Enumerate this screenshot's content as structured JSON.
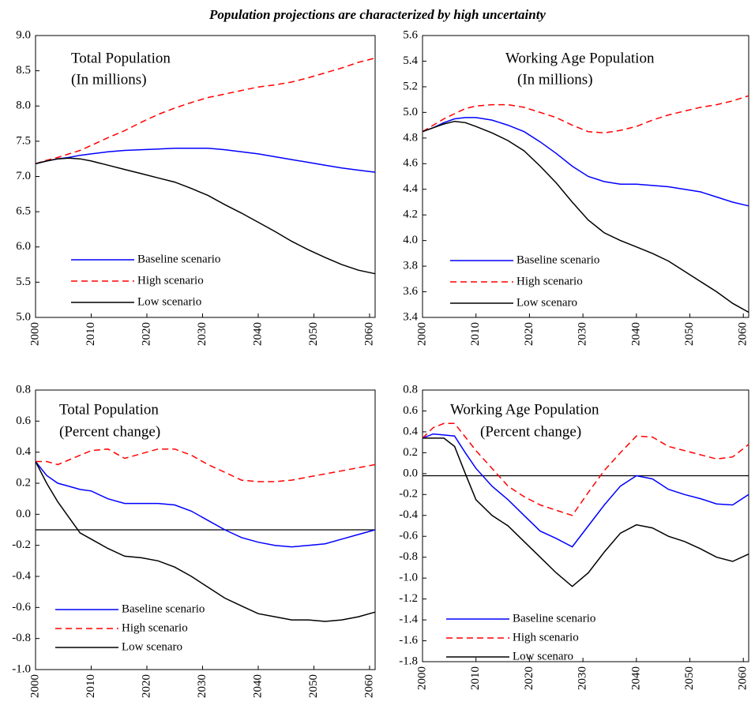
{
  "title": "Population projections are characterized by high uncertainty",
  "chart_data": [
    {
      "type": "line",
      "title": "Total Population",
      "subtitle": "(In millions)",
      "x": [
        2000,
        2002,
        2004,
        2006,
        2008,
        2010,
        2013,
        2016,
        2019,
        2022,
        2025,
        2028,
        2031,
        2034,
        2037,
        2040,
        2043,
        2046,
        2049,
        2052,
        2055,
        2058,
        2061
      ],
      "xlim": [
        2000,
        2061
      ],
      "xticks": [
        2000,
        2010,
        2020,
        2030,
        2040,
        2050,
        2060
      ],
      "ylim": [
        5,
        9
      ],
      "yticks": [
        {
          "value": 5,
          "label": "5.0"
        },
        5.5,
        {
          "value": 6,
          "label": "6.0"
        },
        6.5,
        {
          "value": 7,
          "label": "7.0"
        },
        7.5,
        {
          "value": 8,
          "label": "8.0"
        },
        8.5,
        {
          "value": 9,
          "label": "9.0"
        }
      ],
      "series": [
        {
          "name": "Baseline scenario",
          "color": "#0000ff",
          "dashed": false,
          "values": [
            7.18,
            7.22,
            7.25,
            7.27,
            7.3,
            7.32,
            7.35,
            7.37,
            7.38,
            7.39,
            7.4,
            7.4,
            7.4,
            7.38,
            7.35,
            7.32,
            7.28,
            7.24,
            7.2,
            7.16,
            7.12,
            7.09,
            7.06
          ]
        },
        {
          "name": "High scenario",
          "color": "#ff0000",
          "dashed": true,
          "values": [
            7.18,
            7.23,
            7.27,
            7.32,
            7.37,
            7.44,
            7.55,
            7.65,
            7.77,
            7.88,
            7.97,
            8.05,
            8.12,
            8.17,
            8.22,
            8.27,
            8.3,
            8.34,
            8.4,
            8.47,
            8.54,
            8.62,
            8.68
          ]
        },
        {
          "name": "Low scenario",
          "color": "#000000",
          "dashed": false,
          "values": [
            7.18,
            7.22,
            7.25,
            7.26,
            7.25,
            7.22,
            7.16,
            7.1,
            7.04,
            6.98,
            6.92,
            6.83,
            6.73,
            6.6,
            6.48,
            6.35,
            6.22,
            6.08,
            5.96,
            5.85,
            5.75,
            5.67,
            5.62
          ]
        }
      ]
    },
    {
      "type": "line",
      "title": "Working Age Population",
      "subtitle": "(In millions)",
      "x": [
        2000,
        2002,
        2004,
        2006,
        2008,
        2010,
        2013,
        2016,
        2019,
        2022,
        2025,
        2028,
        2031,
        2034,
        2037,
        2040,
        2043,
        2046,
        2049,
        2052,
        2055,
        2058,
        2061
      ],
      "xlim": [
        2000,
        2061
      ],
      "xticks": [
        2000,
        2010,
        2020,
        2030,
        2040,
        2050,
        2060
      ],
      "ylim": [
        3.4,
        5.6
      ],
      "yticks": [
        3.4,
        3.6,
        3.8,
        {
          "value": 4,
          "label": "4.0"
        },
        4.2,
        4.4,
        4.6,
        4.8,
        {
          "value": 5,
          "label": "5.0"
        },
        5.2,
        5.4,
        5.6
      ],
      "series": [
        {
          "name": "Baseline scenario",
          "color": "#0000ff",
          "dashed": false,
          "values": [
            4.85,
            4.88,
            4.92,
            4.95,
            4.96,
            4.96,
            4.94,
            4.9,
            4.85,
            4.77,
            4.68,
            4.58,
            4.5,
            4.46,
            4.44,
            4.44,
            4.43,
            4.42,
            4.4,
            4.38,
            4.34,
            4.3,
            4.27
          ]
        },
        {
          "name": "High scenario",
          "color": "#ff0000",
          "dashed": true,
          "values": [
            4.85,
            4.9,
            4.95,
            4.99,
            5.03,
            5.05,
            5.06,
            5.06,
            5.04,
            5.0,
            4.96,
            4.9,
            4.85,
            4.84,
            4.86,
            4.89,
            4.94,
            4.98,
            5.01,
            5.04,
            5.06,
            5.09,
            5.13
          ]
        },
        {
          "name": "Low scenaro",
          "color": "#000000",
          "dashed": false,
          "values": [
            4.85,
            4.88,
            4.91,
            4.93,
            4.92,
            4.89,
            4.84,
            4.78,
            4.7,
            4.58,
            4.45,
            4.3,
            4.16,
            4.06,
            4.0,
            3.95,
            3.9,
            3.84,
            3.76,
            3.68,
            3.6,
            3.51,
            3.44
          ]
        }
      ]
    },
    {
      "type": "line",
      "title": "Total Population",
      "subtitle": "(Percent change)",
      "x": [
        2000,
        2002,
        2004,
        2006,
        2008,
        2010,
        2013,
        2016,
        2019,
        2022,
        2025,
        2028,
        2031,
        2034,
        2037,
        2040,
        2043,
        2046,
        2049,
        2052,
        2055,
        2058,
        2061
      ],
      "xlim": [
        2000,
        2061
      ],
      "xticks": [
        2000,
        2010,
        2020,
        2030,
        2040,
        2050,
        2060
      ],
      "ylim": [
        -1,
        0.8
      ],
      "yticks": [
        {
          "value": -1,
          "label": "-1.0"
        },
        -0.8,
        -0.6,
        -0.4,
        -0.2,
        {
          "value": 0,
          "label": "0.0"
        },
        0.2,
        0.4,
        0.6,
        0.8
      ],
      "hline": -0.1,
      "series": [
        {
          "name": "Baseline scenario",
          "color": "#0000ff",
          "dashed": false,
          "values": [
            0.34,
            0.25,
            0.2,
            0.18,
            0.16,
            0.15,
            0.1,
            0.07,
            0.07,
            0.07,
            0.06,
            0.02,
            -0.04,
            -0.1,
            -0.15,
            -0.18,
            -0.2,
            -0.21,
            -0.2,
            -0.19,
            -0.16,
            -0.13,
            -0.1
          ]
        },
        {
          "name": "High scenario",
          "color": "#ff0000",
          "dashed": true,
          "values": [
            0.34,
            0.34,
            0.32,
            0.35,
            0.38,
            0.41,
            0.42,
            0.36,
            0.39,
            0.42,
            0.42,
            0.38,
            0.32,
            0.27,
            0.22,
            0.21,
            0.21,
            0.22,
            0.24,
            0.26,
            0.28,
            0.3,
            0.32
          ]
        },
        {
          "name": "Low scenaro",
          "color": "#000000",
          "dashed": false,
          "values": [
            0.34,
            0.2,
            0.08,
            -0.02,
            -0.12,
            -0.16,
            -0.22,
            -0.27,
            -0.28,
            -0.3,
            -0.34,
            -0.4,
            -0.47,
            -0.54,
            -0.59,
            -0.64,
            -0.66,
            -0.68,
            -0.68,
            -0.69,
            -0.68,
            -0.66,
            -0.63
          ]
        }
      ]
    },
    {
      "type": "line",
      "title": "Working Age Population",
      "subtitle": "(Percent change)",
      "x": [
        2000,
        2002,
        2004,
        2006,
        2008,
        2010,
        2013,
        2016,
        2019,
        2022,
        2025,
        2028,
        2031,
        2034,
        2037,
        2040,
        2043,
        2046,
        2049,
        2052,
        2055,
        2058,
        2061
      ],
      "xlim": [
        2000,
        2061
      ],
      "xticks": [
        2000,
        2010,
        2020,
        2030,
        2040,
        2050,
        2060
      ],
      "ylim": [
        -1.8,
        0.8
      ],
      "yticks": [
        -1.8,
        -1.6,
        -1.4,
        -1.2,
        {
          "value": -1,
          "label": "-1.0"
        },
        -0.8,
        -0.6,
        -0.4,
        -0.2,
        {
          "value": 0,
          "label": "0.0"
        },
        0.2,
        0.4,
        0.6,
        0.8
      ],
      "hline": -0.02,
      "series": [
        {
          "name": "Baseline scenario",
          "color": "#0000ff",
          "dashed": false,
          "values": [
            0.34,
            0.38,
            0.37,
            0.36,
            0.2,
            0.05,
            -0.12,
            -0.25,
            -0.4,
            -0.55,
            -0.62,
            -0.7,
            -0.5,
            -0.3,
            -0.12,
            -0.02,
            -0.05,
            -0.15,
            -0.2,
            -0.24,
            -0.29,
            -0.3,
            -0.2
          ]
        },
        {
          "name": "High scenario",
          "color": "#ff0000",
          "dashed": true,
          "values": [
            0.34,
            0.44,
            0.48,
            0.48,
            0.35,
            0.22,
            0.05,
            -0.12,
            -0.22,
            -0.3,
            -0.35,
            -0.4,
            -0.18,
            0.03,
            0.2,
            0.36,
            0.35,
            0.26,
            0.22,
            0.18,
            0.14,
            0.16,
            0.28
          ]
        },
        {
          "name": "Low scenaro",
          "color": "#000000",
          "dashed": false,
          "values": [
            0.34,
            0.34,
            0.34,
            0.26,
            0.0,
            -0.25,
            -0.4,
            -0.5,
            -0.65,
            -0.8,
            -0.95,
            -1.08,
            -0.95,
            -0.75,
            -0.57,
            -0.49,
            -0.52,
            -0.6,
            -0.65,
            -0.72,
            -0.8,
            -0.84,
            -0.77
          ]
        }
      ]
    }
  ]
}
